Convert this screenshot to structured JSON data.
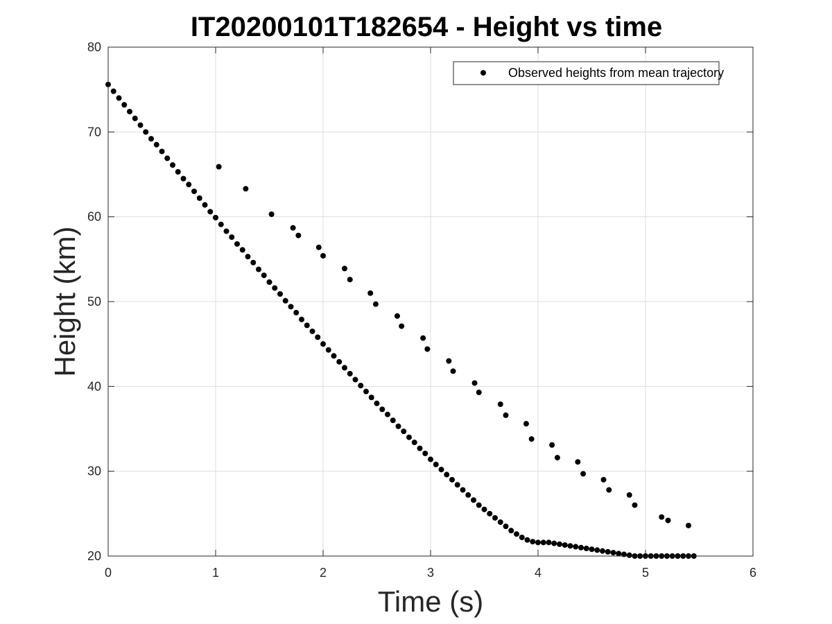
{
  "chart_data": {
    "type": "scatter",
    "title": "IT20200101T182654 - Height vs time",
    "xlabel": "Time (s)",
    "ylabel": "Height (km)",
    "xlim": [
      0,
      6
    ],
    "ylim": [
      20,
      80
    ],
    "xticks": [
      "0",
      "1",
      "2",
      "3",
      "4",
      "5",
      "6"
    ],
    "yticks": [
      "20",
      "30",
      "40",
      "50",
      "60",
      "70",
      "80"
    ],
    "grid": true,
    "legend_position": "top-right",
    "marker_color": "#000000",
    "series": [
      {
        "name": "Observed heights from mean trajectory",
        "x": [
          0.0,
          0.05,
          0.1,
          0.15,
          0.2,
          0.25,
          0.3,
          0.35,
          0.4,
          0.45,
          0.5,
          0.55,
          0.6,
          0.65,
          0.7,
          0.75,
          0.8,
          0.85,
          0.9,
          0.95,
          1.0,
          1.05,
          1.1,
          1.15,
          1.2,
          1.25,
          1.3,
          1.35,
          1.4,
          1.45,
          1.5,
          1.55,
          1.6,
          1.65,
          1.7,
          1.75,
          1.8,
          1.85,
          1.9,
          1.95,
          2.0,
          2.05,
          2.1,
          2.15,
          2.2,
          2.25,
          2.3,
          2.35,
          2.4,
          2.45,
          2.5,
          2.55,
          2.6,
          2.65,
          2.7,
          2.75,
          2.8,
          2.85,
          2.9,
          2.95,
          3.0,
          3.05,
          3.1,
          3.15,
          3.2,
          3.25,
          3.3,
          3.35,
          3.4,
          3.45,
          3.5,
          3.55,
          3.6,
          3.65,
          3.7,
          3.75,
          3.8,
          3.85,
          3.9,
          3.95,
          4.0,
          4.05,
          4.1,
          4.15,
          4.2,
          4.25,
          4.3,
          4.35,
          4.4,
          4.45,
          4.5,
          4.55,
          4.6,
          4.65,
          4.7,
          4.75,
          4.8,
          4.85,
          4.9,
          4.95,
          5.0,
          5.05,
          5.1,
          5.15,
          5.2,
          5.25,
          5.3,
          5.35,
          5.4,
          5.45,
          1.03,
          1.28,
          1.52,
          1.72,
          1.77,
          1.96,
          2.0,
          2.2,
          2.25,
          2.44,
          2.49,
          2.69,
          2.73,
          2.93,
          2.97,
          3.17,
          3.21,
          3.41,
          3.45,
          3.65,
          3.7,
          3.89,
          3.94,
          4.13,
          4.18,
          4.37,
          4.42,
          4.61,
          4.66,
          4.85,
          4.9,
          5.15,
          5.21,
          5.4
        ],
        "y": [
          75.6,
          74.8,
          74.0,
          73.2,
          72.4,
          71.6,
          70.8,
          70.0,
          69.2,
          68.5,
          67.7,
          66.9,
          66.1,
          65.3,
          64.5,
          63.8,
          63.0,
          62.2,
          61.4,
          60.6,
          59.9,
          59.1,
          58.3,
          57.6,
          56.8,
          56.1,
          55.3,
          54.6,
          53.8,
          53.1,
          52.3,
          51.6,
          50.9,
          50.1,
          49.4,
          48.7,
          47.9,
          47.2,
          46.5,
          45.8,
          45.0,
          44.3,
          43.6,
          42.9,
          42.2,
          41.5,
          40.8,
          40.1,
          39.4,
          38.7,
          38.0,
          37.3,
          36.7,
          36.0,
          35.3,
          34.7,
          34.0,
          33.4,
          32.7,
          32.1,
          31.4,
          30.8,
          30.2,
          29.6,
          29.0,
          28.4,
          27.8,
          27.2,
          26.6,
          26.0,
          25.5,
          25.0,
          24.5,
          24.0,
          23.5,
          23.0,
          22.6,
          22.2,
          21.9,
          21.7,
          21.6,
          21.6,
          21.6,
          21.5,
          21.4,
          21.3,
          21.2,
          21.1,
          21.0,
          20.9,
          20.8,
          20.7,
          20.6,
          20.5,
          20.4,
          20.3,
          20.2,
          20.1,
          20.0,
          20.0,
          20.0,
          20.0,
          20.0,
          20.0,
          20.0,
          20.0,
          20.0,
          20.0,
          20.0,
          20.0,
          65.9,
          63.3,
          60.3,
          58.7,
          57.8,
          56.4,
          55.4,
          53.9,
          52.6,
          51.0,
          49.7,
          48.3,
          47.1,
          45.7,
          44.4,
          43.0,
          41.8,
          40.4,
          39.3,
          37.9,
          36.6,
          35.6,
          33.8,
          33.1,
          31.6,
          31.1,
          29.7,
          29.0,
          27.8,
          27.2,
          26.0,
          24.6,
          24.2,
          23.6
        ]
      }
    ]
  }
}
